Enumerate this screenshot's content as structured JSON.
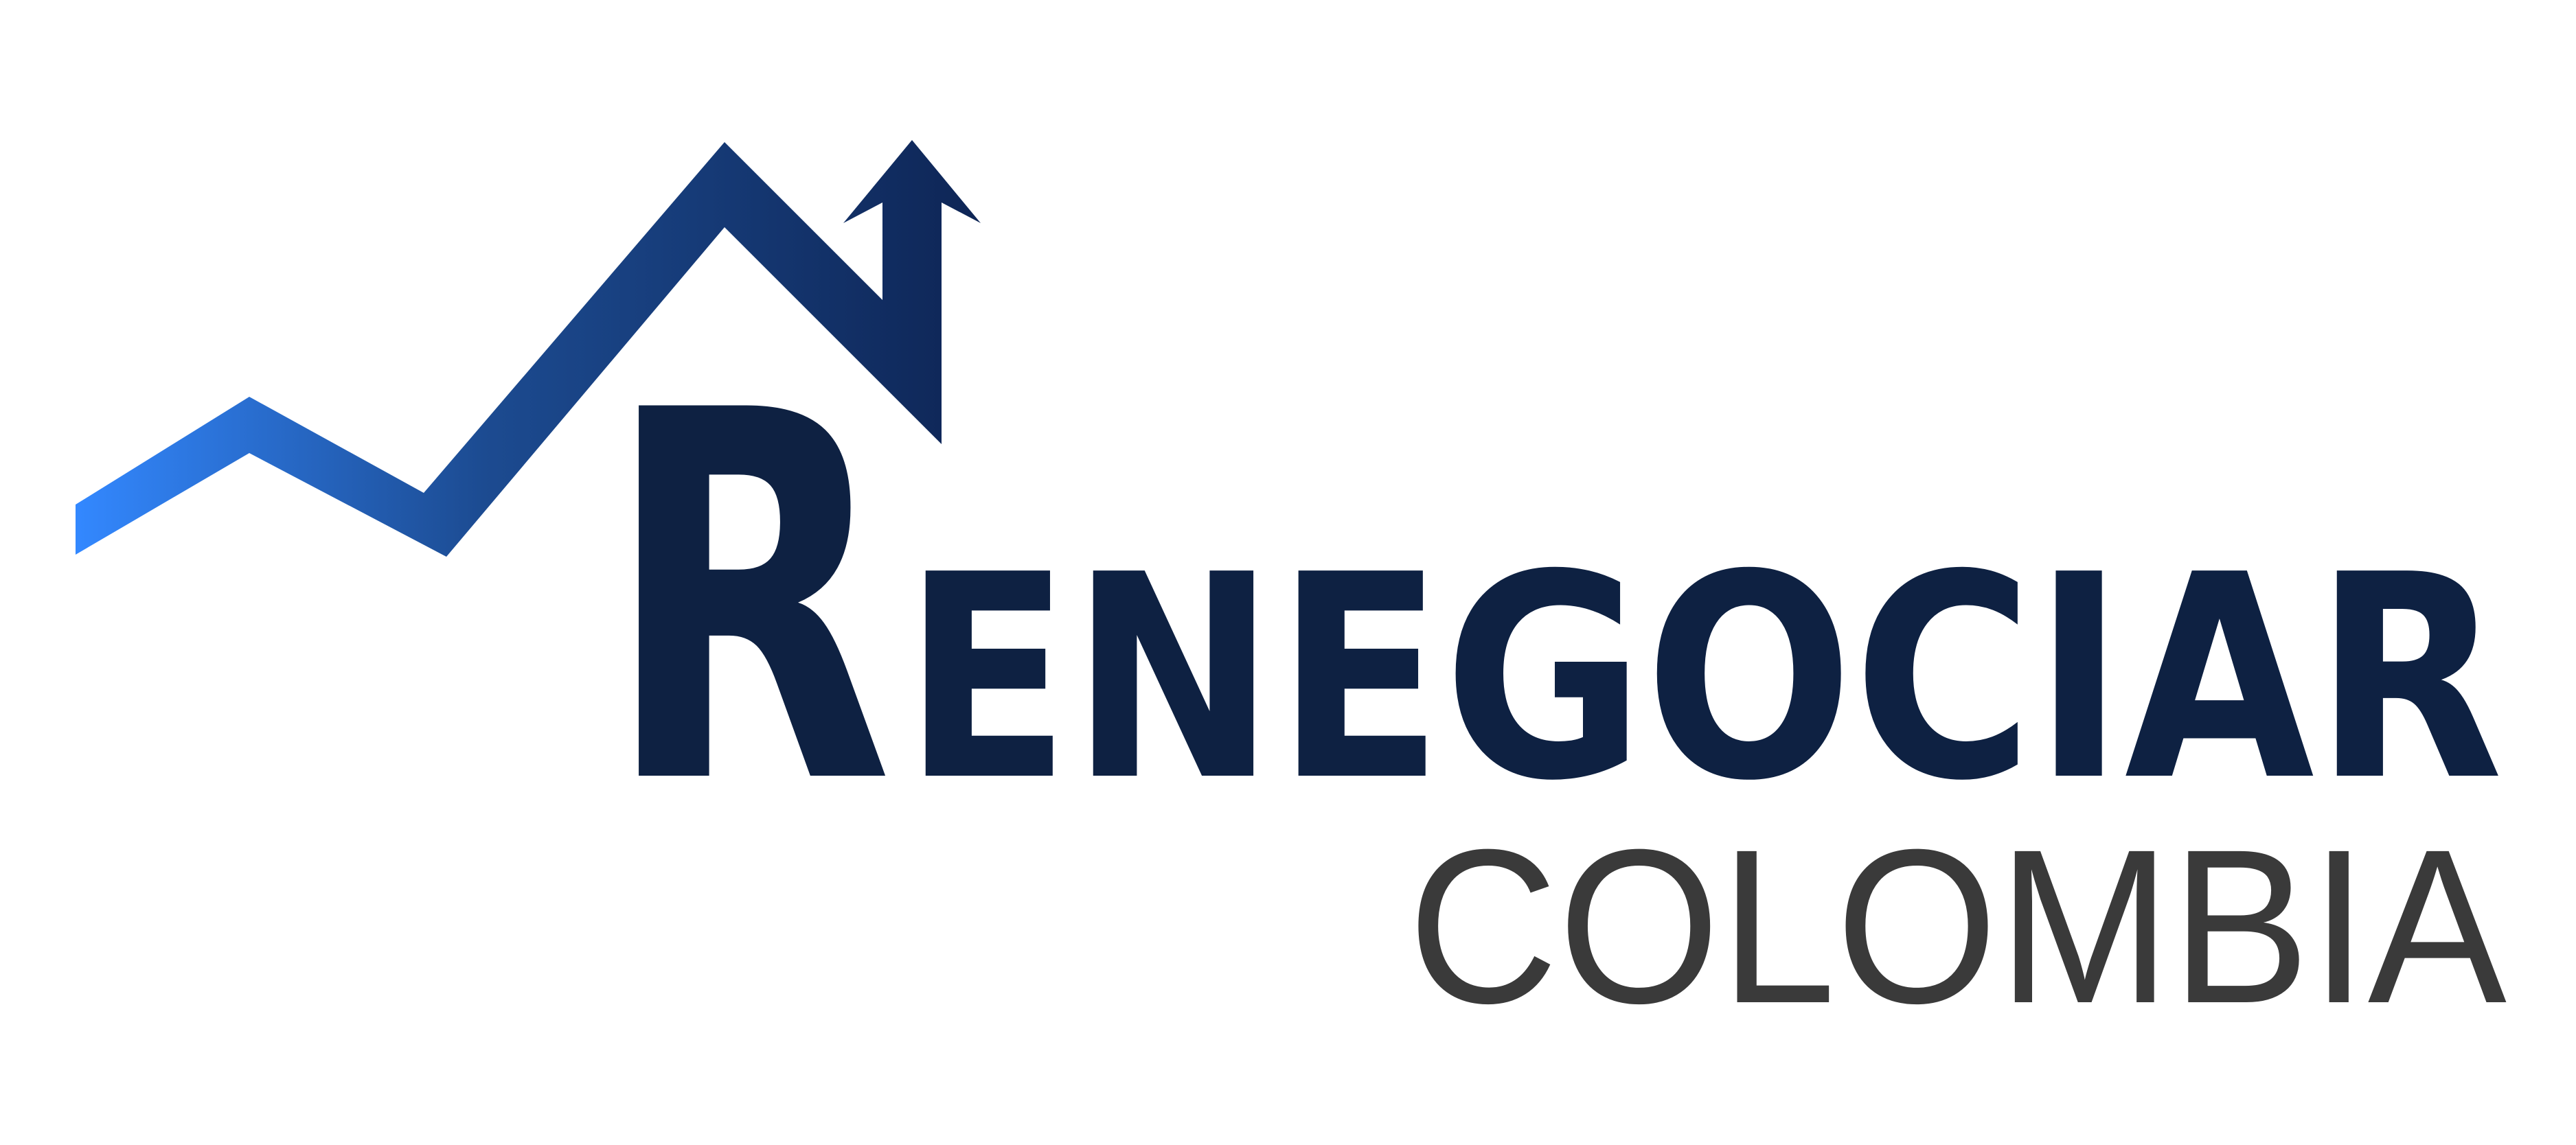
{
  "logo": {
    "brand_big_initial": "R",
    "brand_rest": "ENEGOCIAR",
    "subtitle": "COLOMBIA",
    "colors": {
      "navy": "#0e2142",
      "gradient_start": "#3388ff",
      "gradient_mid": "#1c4b91",
      "gradient_end": "#0e2555",
      "subtitle_gray": "#3a3a3a",
      "background": "#ffffff"
    },
    "graphic": "rising-roof-arrow-icon"
  }
}
